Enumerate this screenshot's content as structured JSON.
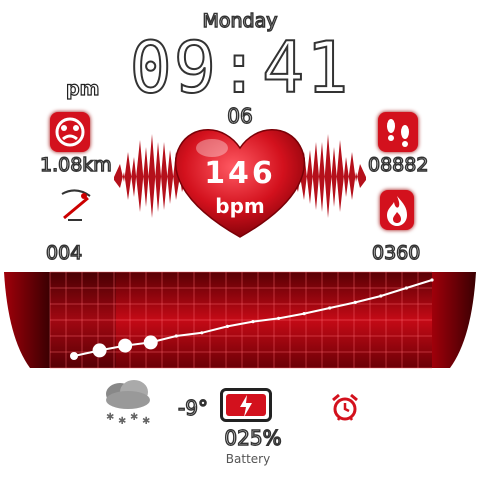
{
  "day": "Monday",
  "ampm": "pm",
  "time": "09:41",
  "seconds": "06",
  "heart_rate": {
    "value": "146",
    "unit": "bpm"
  },
  "distance": "1.08km",
  "steps": "08882",
  "count_left": "004",
  "calories": "0360",
  "temperature": "-9°",
  "battery": {
    "percent": "025%",
    "label": "Battery",
    "level": 0.25
  },
  "colors": {
    "accent": "#d3111d",
    "dark": "#8a0008",
    "line": "#ffffff"
  },
  "icons": {
    "distance": "face-icon",
    "steps": "footprints-icon",
    "left_metric": "skier-icon",
    "calories": "flame-icon",
    "weather": "snow-cloud-icon",
    "battery": "battery-icon",
    "alarm": "alarm-clock-icon",
    "heart": "heart-icon"
  },
  "chart_data": {
    "type": "line",
    "series": [
      {
        "values": [
          0.05,
          0.12,
          0.18,
          0.22,
          0.3,
          0.34,
          0.42,
          0.48,
          0.52,
          0.58,
          0.65,
          0.72,
          0.8,
          0.9,
          1.0
        ]
      }
    ],
    "highlighted_points": [
      0,
      1,
      2,
      3
    ],
    "grid": true
  }
}
